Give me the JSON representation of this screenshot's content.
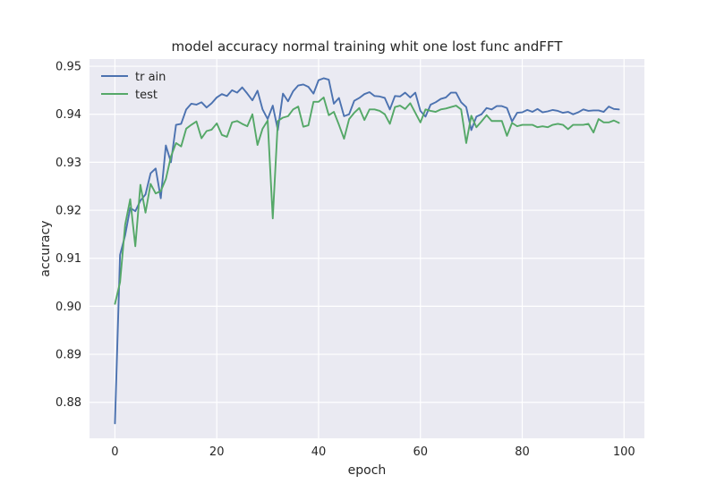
{
  "chart_data": {
    "type": "line",
    "title": "model accuracy normal training whit one lost func andFFT",
    "xlabel": "epoch",
    "ylabel": "accuracy",
    "xlim": [
      -5,
      104
    ],
    "ylim": [
      0.8725,
      0.9515
    ],
    "xticks": [
      0,
      20,
      40,
      60,
      80,
      100
    ],
    "yticks": [
      0.88,
      0.89,
      0.9,
      0.91,
      0.92,
      0.93,
      0.94,
      0.95
    ],
    "xtick_labels": [
      "0",
      "20",
      "40",
      "60",
      "80",
      "100"
    ],
    "ytick_labels": [
      "0.88",
      "0.89",
      "0.90",
      "0.91",
      "0.92",
      "0.93",
      "0.94",
      "0.95"
    ],
    "grid": true,
    "legend_position": "top-left",
    "background": "#eaeaf2",
    "series": [
      {
        "name": "tr ain",
        "color": "#4c72b0",
        "values": [
          0.8756,
          0.9107,
          0.9148,
          0.9205,
          0.9198,
          0.922,
          0.9233,
          0.9277,
          0.9287,
          0.9225,
          0.9335,
          0.93,
          0.9378,
          0.938,
          0.941,
          0.9422,
          0.942,
          0.9425,
          0.9414,
          0.9423,
          0.9435,
          0.9442,
          0.9438,
          0.945,
          0.9445,
          0.9456,
          0.9443,
          0.9429,
          0.9449,
          0.941,
          0.939,
          0.9418,
          0.9367,
          0.9443,
          0.9427,
          0.9448,
          0.946,
          0.9462,
          0.9457,
          0.9443,
          0.9471,
          0.9475,
          0.9472,
          0.9422,
          0.9434,
          0.9396,
          0.94,
          0.9428,
          0.9434,
          0.9442,
          0.9446,
          0.9438,
          0.9437,
          0.9434,
          0.941,
          0.9438,
          0.9437,
          0.9445,
          0.9435,
          0.9445,
          0.9407,
          0.9395,
          0.942,
          0.9425,
          0.9432,
          0.9435,
          0.9445,
          0.9445,
          0.9425,
          0.9415,
          0.9367,
          0.9395,
          0.94,
          0.9413,
          0.941,
          0.9417,
          0.9417,
          0.9413,
          0.9385,
          0.9403,
          0.9404,
          0.9409,
          0.9405,
          0.9411,
          0.9404,
          0.9406,
          0.9409,
          0.9407,
          0.9403,
          0.9405,
          0.94,
          0.9404,
          0.941,
          0.9407,
          0.9408,
          0.9408,
          0.9405,
          0.9416,
          0.9411,
          0.941
        ]
      },
      {
        "name": "test",
        "color": "#55a868",
        "values": [
          0.9005,
          0.905,
          0.917,
          0.9223,
          0.9125,
          0.9253,
          0.9195,
          0.9255,
          0.9235,
          0.924,
          0.9265,
          0.9312,
          0.934,
          0.9333,
          0.937,
          0.9378,
          0.9385,
          0.935,
          0.9365,
          0.9368,
          0.9381,
          0.9357,
          0.9353,
          0.9383,
          0.9386,
          0.938,
          0.9375,
          0.94,
          0.9336,
          0.937,
          0.9387,
          0.9183,
          0.9386,
          0.9393,
          0.9396,
          0.941,
          0.9416,
          0.9374,
          0.9377,
          0.9426,
          0.9426,
          0.9435,
          0.9398,
          0.9405,
          0.9378,
          0.9349,
          0.939,
          0.9403,
          0.9413,
          0.9388,
          0.941,
          0.941,
          0.9407,
          0.94,
          0.938,
          0.9415,
          0.9418,
          0.9411,
          0.9423,
          0.9403,
          0.9383,
          0.941,
          0.9407,
          0.9405,
          0.941,
          0.9412,
          0.9415,
          0.9418,
          0.941,
          0.934,
          0.9397,
          0.9373,
          0.9385,
          0.9398,
          0.9386,
          0.9386,
          0.9386,
          0.9355,
          0.9382,
          0.9375,
          0.9378,
          0.9378,
          0.9378,
          0.9373,
          0.9375,
          0.9373,
          0.9378,
          0.938,
          0.9378,
          0.9369,
          0.9378,
          0.9378,
          0.9378,
          0.938,
          0.9362,
          0.939,
          0.9383,
          0.9383,
          0.9387,
          0.9382
        ]
      }
    ]
  }
}
